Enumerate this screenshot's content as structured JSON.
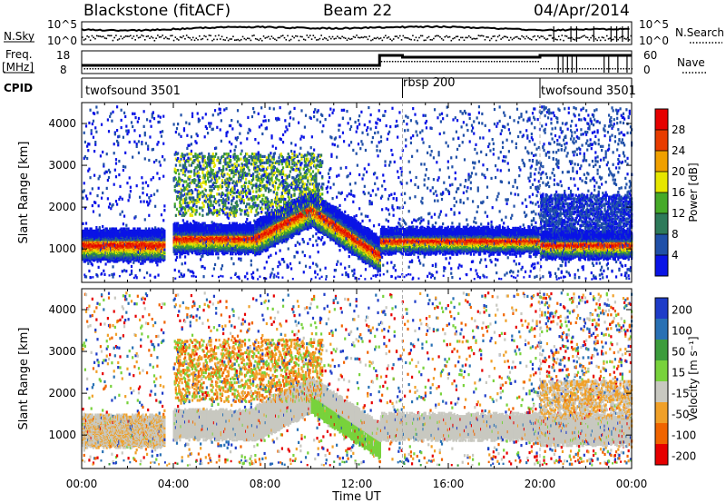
{
  "header": {
    "radar": "Blackstone (fitACF)",
    "beam": "Beam 22",
    "date": "04/Apr/2014"
  },
  "top_panels": {
    "nsky_label": "N.Sky",
    "nsearch_label": "N.Search",
    "noise_ticks_left": [
      "10^5",
      "10^0"
    ],
    "noise_ticks_right": [
      "10^5",
      "10^0"
    ],
    "freq_label": "Freq.",
    "freq_unit": "[MHz]",
    "freq_ticks": [
      "18",
      "8"
    ],
    "nave_label": "Nave",
    "nave_ticks": [
      "60",
      "0"
    ],
    "cpid_label": "CPID",
    "cpid_segments": [
      {
        "name": "twofsound 3501",
        "start": 0,
        "end": 14
      },
      {
        "name": "rbsp 200",
        "start": 14,
        "end": 20
      },
      {
        "name": "twofsound 3501",
        "start": 20,
        "end": 24
      }
    ]
  },
  "chart_data": [
    {
      "type": "heatmap",
      "name": "power",
      "xlabel": "",
      "ylabel": "Slant Range [km]",
      "x_unit": "hours UT",
      "xlim": [
        0,
        24
      ],
      "ylim": [
        200,
        4500
      ],
      "yticks": [
        "1000",
        "2000",
        "3000",
        "4000"
      ],
      "colorbar_label": "Power [dB]",
      "colorbar_ticks": [
        "4",
        "8",
        "12",
        "16",
        "20",
        "24",
        "28"
      ],
      "colorbar_colors": [
        "#0a14e6",
        "#2050a8",
        "#2e7a5a",
        "#46aa28",
        "#e6e600",
        "#f0a000",
        "#e83c00",
        "#e60000"
      ],
      "data_gap_hours": [
        3.6,
        3.95
      ],
      "bands": [
        {
          "t_start": 0,
          "t_end": 3.6,
          "r_start": 800,
          "r_end": 1400
        },
        {
          "t_start": 4.0,
          "t_end": 7.5,
          "r_start": 1000,
          "r_end": 1500
        },
        {
          "t_start": 7.5,
          "t_end": 10.0,
          "r_start": 1100,
          "r_end": 2200
        },
        {
          "t_start": 10.0,
          "t_end": 13.0,
          "r_start": 600,
          "r_end": 1800
        },
        {
          "t_start": 13.0,
          "t_end": 20.0,
          "r_start": 1000,
          "r_end": 1400
        },
        {
          "t_start": 20.0,
          "t_end": 24.0,
          "r_start": 800,
          "r_end": 1400
        }
      ]
    },
    {
      "type": "heatmap",
      "name": "velocity",
      "xlabel": "Time UT",
      "ylabel": "Slant Range [km]",
      "x_unit": "hours UT",
      "xlim": [
        0,
        24
      ],
      "ylim": [
        200,
        4500
      ],
      "yticks": [
        "1000",
        "2000",
        "3000",
        "4000"
      ],
      "xticks": [
        "00:00",
        "04:00",
        "08:00",
        "12:00",
        "16:00",
        "20:00",
        "00:00"
      ],
      "colorbar_label": "Velocity [m s⁻¹]",
      "colorbar_ticks": [
        "200",
        "100",
        "50",
        "15",
        "-15",
        "-50",
        "-100",
        "-200"
      ],
      "colorbar_colors": [
        "#1e3cc8",
        "#2870b4",
        "#3c9c3c",
        "#78d23c",
        "#c8c8c0",
        "#f0a028",
        "#f06400",
        "#e60000"
      ],
      "data_gap_hours": [
        3.6,
        3.95
      ]
    }
  ]
}
